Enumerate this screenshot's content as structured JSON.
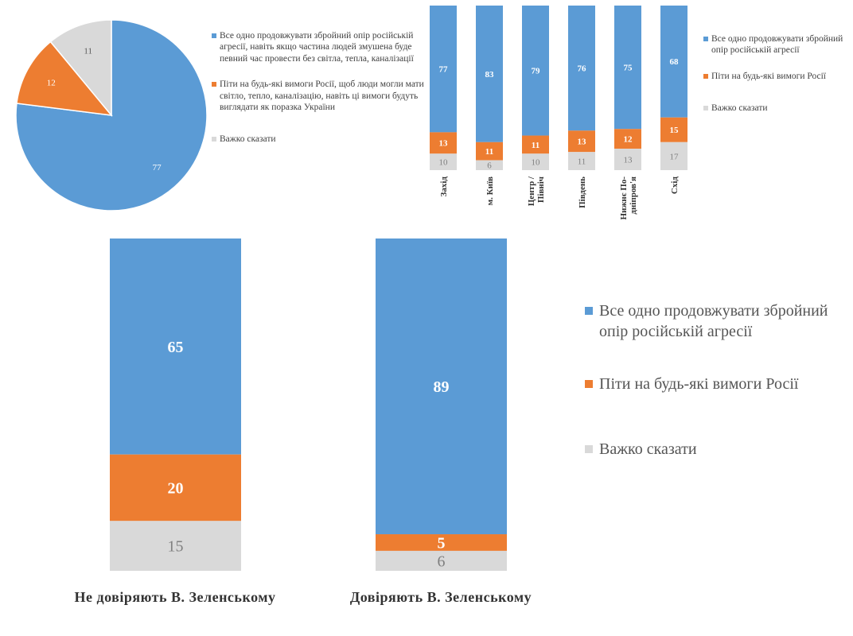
{
  "colors": {
    "blue": "#5B9BD5",
    "orange": "#ED7D31",
    "gray": "#D9D9D9"
  },
  "legend": [
    "Все одно продовжувати збройний опір російській агресії",
    "Піти на будь-які вимоги Росії",
    "Важко сказати"
  ],
  "pie_legend": [
    "Все одно продовжувати збройний опір російській агресії, навіть якщо частина людей змушена буде певний час провести без світла, тепла, каналізації",
    "Піти на будь-які вимоги Росії, щоб люди могли мати світло, тепло, каналізацію, навіть ці вимоги будуть виглядати як поразка України",
    "Важко сказати"
  ],
  "chart_data": [
    {
      "type": "pie",
      "labels": [
        "Все одно продовжувати збройний опір російській агресії, навіть якщо частина людей змушена буде певний час провести без світла, тепла, каналізації",
        "Піти на будь-які вимоги Росії, щоб люди могли мати світло, тепло, каналізацію, навіть ці вимоги будуть виглядати як поразка України",
        "Важко сказати"
      ],
      "values": [
        77,
        12,
        11
      ],
      "legend_position": "right"
    },
    {
      "type": "bar",
      "stacked": true,
      "categories": [
        "Захід",
        "м. Київ",
        "Центр / Північ",
        "Південь",
        "Нижнє По-дніпров'я",
        "Схід"
      ],
      "series": [
        {
          "name": "Все одно продовжувати збройний опір російській агресії",
          "values": [
            77,
            83,
            79,
            76,
            75,
            68
          ]
        },
        {
          "name": "Піти на будь-які вимоги Росії",
          "values": [
            13,
            11,
            11,
            13,
            12,
            15
          ]
        },
        {
          "name": "Важко сказати",
          "values": [
            10,
            6,
            10,
            11,
            13,
            17
          ]
        }
      ],
      "ylim": [
        0,
        100
      ],
      "legend_position": "right"
    },
    {
      "type": "bar",
      "stacked": true,
      "categories": [
        "Не довіряють В. Зеленському",
        "Довіряють В. Зеленському"
      ],
      "series": [
        {
          "name": "Все одно продовжувати збройний опір російській агресії",
          "values": [
            65,
            89
          ]
        },
        {
          "name": "Піти на будь-які вимоги Росії",
          "values": [
            20,
            5
          ]
        },
        {
          "name": "Важко сказати",
          "values": [
            15,
            6
          ]
        }
      ],
      "ylim": [
        0,
        100
      ],
      "legend_position": "right"
    }
  ]
}
